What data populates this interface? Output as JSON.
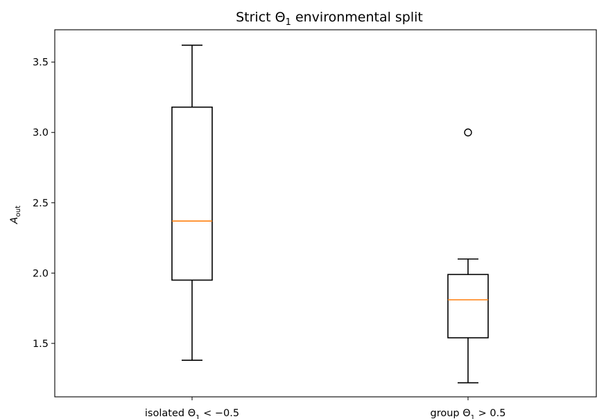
{
  "chart_data": {
    "type": "box",
    "title": {
      "prefix": "Strict ",
      "symbol": "Θ",
      "sub": "1",
      "suffix": " environmental split"
    },
    "ylabel": {
      "main": "A",
      "sub": "out"
    },
    "xlabel": "",
    "ylim": [
      1.12,
      3.73
    ],
    "yticks": [
      1.5,
      2.0,
      2.5,
      3.0,
      3.5
    ],
    "ytick_labels": [
      "1.5",
      "2.0",
      "2.5",
      "3.0",
      "3.5"
    ],
    "grid": false,
    "categories": [
      {
        "prefix": "isolated ",
        "symbol": "Θ",
        "sub": "1",
        "suffix": " < −0.5"
      },
      {
        "prefix": "group ",
        "symbol": "Θ",
        "sub": "1",
        "suffix": " > 0.5"
      }
    ],
    "boxes": [
      {
        "whisker_low": 1.38,
        "q1": 1.95,
        "median": 2.37,
        "q3": 3.18,
        "whisker_high": 3.62,
        "outliers": []
      },
      {
        "whisker_low": 1.22,
        "q1": 1.54,
        "median": 1.81,
        "q3": 1.99,
        "whisker_high": 2.1,
        "outliers": [
          3.0
        ]
      }
    ],
    "colors": {
      "box": "#000000",
      "median": "#ff7f0e",
      "axes": "#000000"
    }
  }
}
